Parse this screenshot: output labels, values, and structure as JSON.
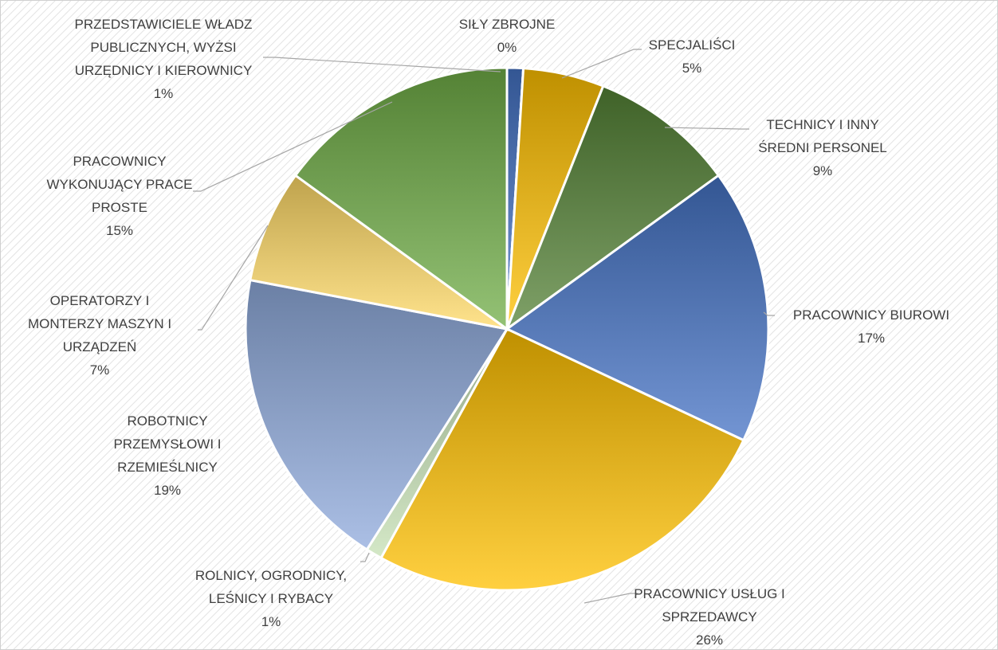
{
  "chart_data": {
    "type": "pie",
    "categories": [
      "PRZEDSTAWICIELE WŁADZ PUBLICZNYCH, WYŻSI URZĘDNICY I KIEROWNICY",
      "SIŁY ZBROJNE",
      "SPECJALIŚCI",
      "TECHNICY I INNY ŚREDNI PERSONEL",
      "PRACOWNICY BIUROWI",
      "PRACOWNICY USŁUG I SPRZEDAWCY",
      "ROLNICY, OGRODNICY, LEŚNICY I RYBACY",
      "ROBOTNICY PRZEMYSŁOWI I RZEMIEŚLNICY",
      "OPERATORZY I MONTERZY MASZYN I URZĄDZEŃ",
      "PRACOWNICY WYKONUJĄCY PRACE PROSTE"
    ],
    "values": [
      1,
      0,
      5,
      9,
      17,
      26,
      1,
      19,
      7,
      15
    ],
    "value_labels": [
      "1%",
      "0%",
      "5%",
      "9%",
      "17%",
      "26%",
      "1%",
      "19%",
      "7%",
      "15%"
    ],
    "colors": [
      "#4472c4",
      "#264478",
      "#ffc000",
      "#548235",
      "#4472c4",
      "#ffc000",
      "#c5e0b4",
      "#8faadc",
      "#ffd966",
      "#70ad47"
    ]
  }
}
